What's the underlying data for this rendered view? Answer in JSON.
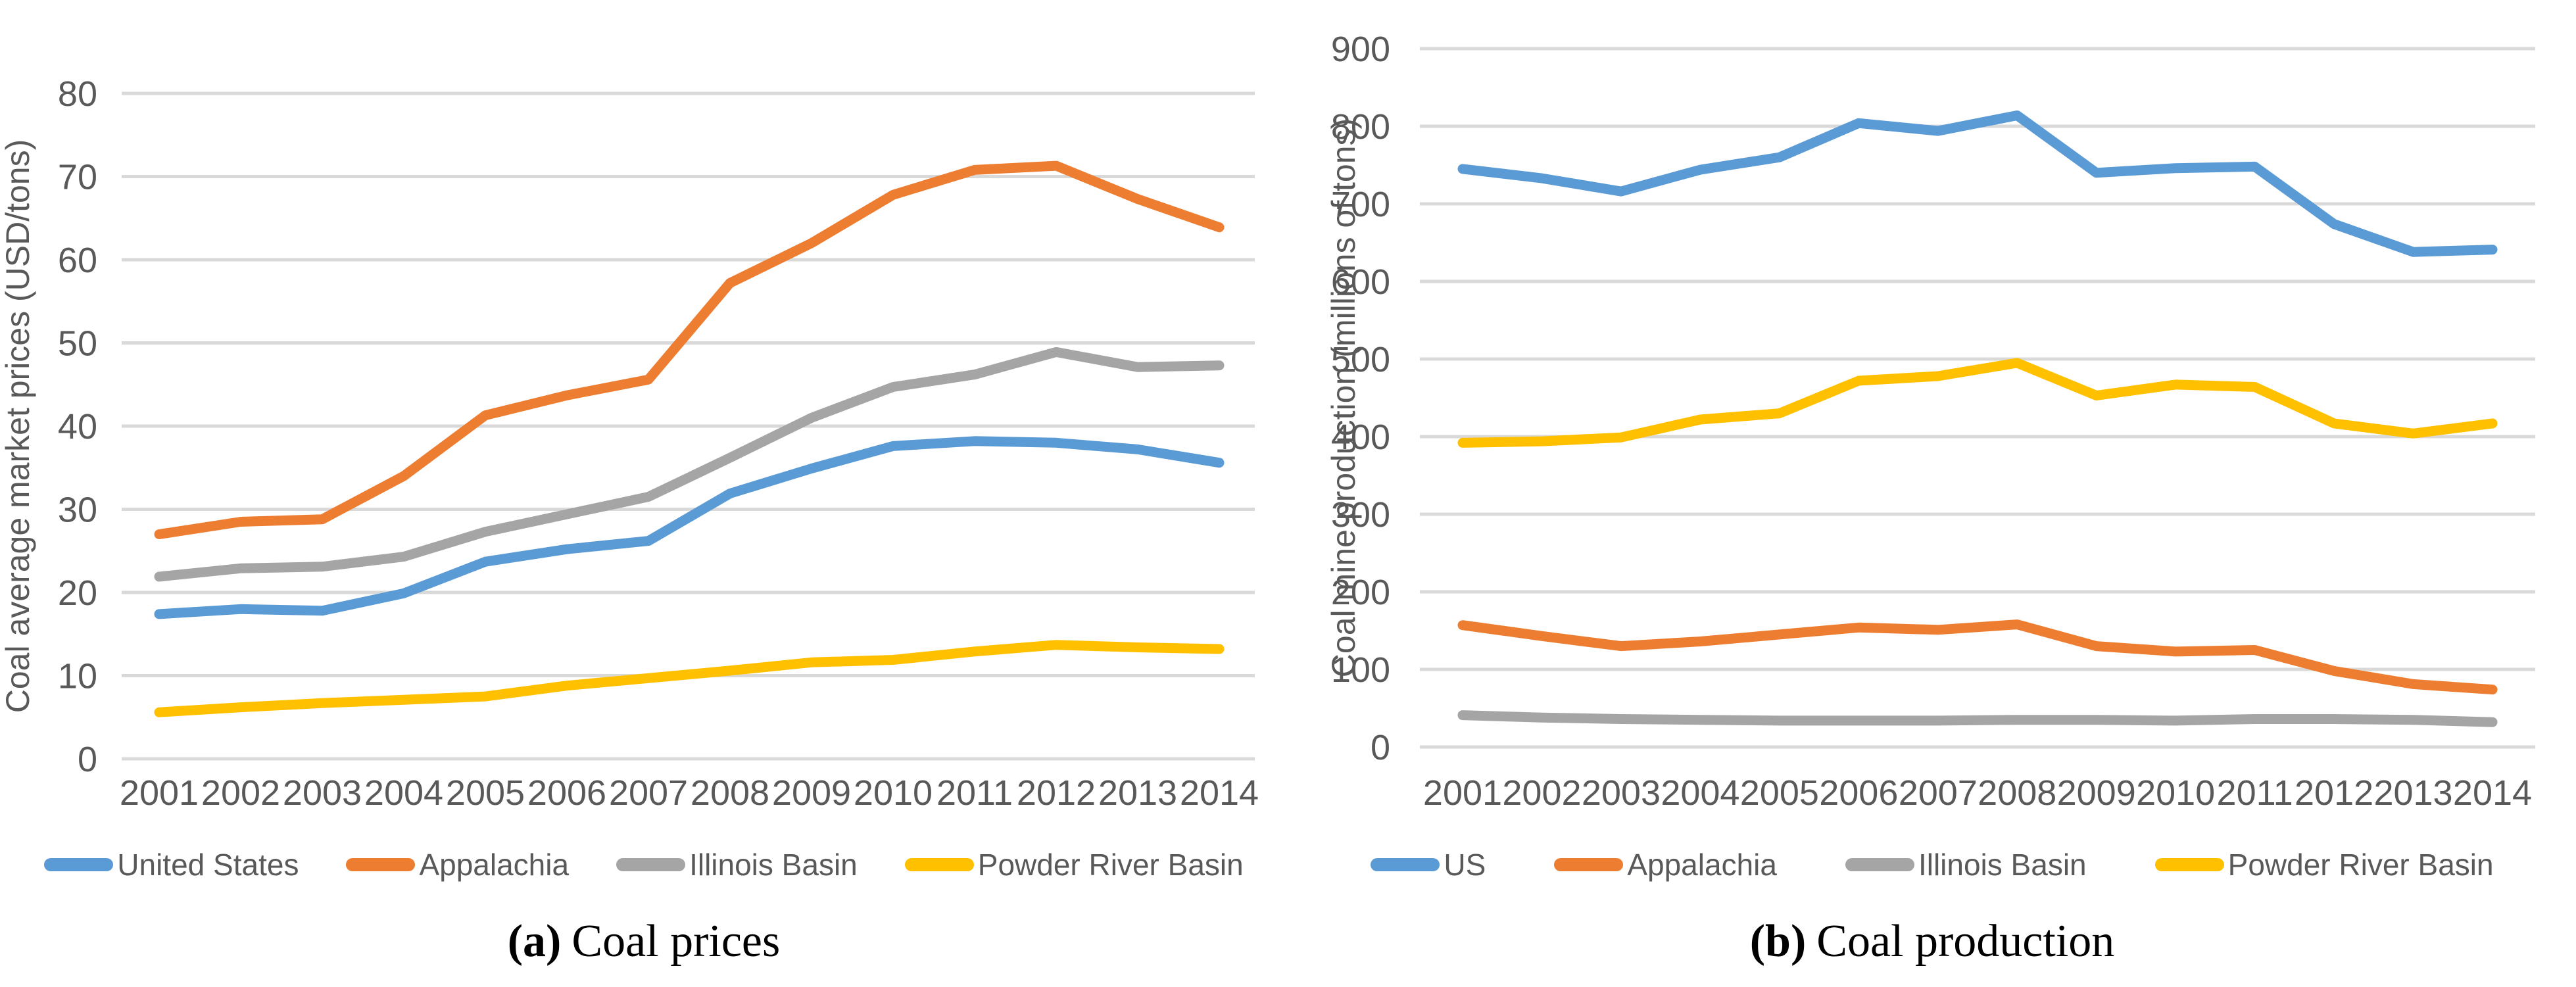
{
  "styles": {
    "background": "#FFFFFF",
    "text_color": "#595959",
    "gridline_color": "#D9D9D9",
    "caption_color": "#000000",
    "series_blue": "#5B9BD5",
    "series_orange": "#ED7D31",
    "series_gray": "#A5A5A5",
    "series_yellow": "#FFC000"
  },
  "chart_data": [
    {
      "id": "a",
      "type": "line",
      "caption_label": "(a)",
      "caption_text": "Coal prices",
      "y_axis_title": "Coal average market prices (USD/tons)",
      "xlabel": "",
      "ylabel": "Coal average market prices (USD/tons)",
      "ylim": [
        0,
        80
      ],
      "ytick_step": 10,
      "grid": true,
      "legend_position": "bottom",
      "categories": [
        "2001",
        "2002",
        "2003",
        "2004",
        "2005",
        "2006",
        "2007",
        "2008",
        "2009",
        "2010",
        "2011",
        "2012",
        "2013",
        "2014"
      ],
      "series": [
        {
          "name": "United States",
          "color": "#5B9BD5",
          "values": [
            17.4,
            18.0,
            17.8,
            19.9,
            23.7,
            25.2,
            26.2,
            31.9,
            34.9,
            37.6,
            38.2,
            38.0,
            37.2,
            35.6
          ]
        },
        {
          "name": "Appalachia",
          "color": "#ED7D31",
          "values": [
            27.0,
            28.5,
            28.8,
            34.0,
            41.3,
            43.7,
            45.6,
            57.2,
            62.0,
            67.8,
            70.8,
            71.3,
            67.3,
            63.9
          ]
        },
        {
          "name": "Illinois Basin",
          "color": "#A5A5A5",
          "values": [
            21.9,
            22.9,
            23.1,
            24.3,
            27.3,
            29.4,
            31.5,
            36.2,
            41.0,
            44.7,
            46.2,
            48.9,
            47.1,
            47.3
          ]
        },
        {
          "name": "Powder River Basin",
          "color": "#FFC000",
          "values": [
            5.6,
            6.2,
            6.7,
            7.1,
            7.5,
            8.8,
            9.7,
            10.6,
            11.6,
            11.9,
            12.9,
            13.7,
            13.4,
            13.2
          ]
        }
      ]
    },
    {
      "id": "b",
      "type": "line",
      "caption_label": "(b)",
      "caption_text": "Coal production",
      "y_axis_title": "Coal mine production (millions of tons)",
      "xlabel": "",
      "ylabel": "Coal mine production (millions of tons)",
      "ylim": [
        0,
        900
      ],
      "ytick_step": 100,
      "grid": true,
      "legend_position": "bottom",
      "categories": [
        "2001",
        "2002",
        "2003",
        "2004",
        "2005",
        "2006",
        "2007",
        "2008",
        "2009",
        "2010",
        "2011",
        "2012",
        "2013",
        "2014"
      ],
      "series": [
        {
          "name": "US",
          "color": "#5B9BD5",
          "values": [
            745,
            733,
            716,
            744,
            760,
            804,
            794,
            814,
            740,
            746,
            748,
            674,
            638,
            641
          ]
        },
        {
          "name": "Appalachia",
          "color": "#ED7D31",
          "values": [
            157,
            143,
            130,
            136,
            145,
            154,
            151,
            158,
            130,
            123,
            125,
            98,
            81,
            74
          ]
        },
        {
          "name": "Illinois Basin",
          "color": "#A5A5A5",
          "values": [
            41,
            38,
            36,
            35,
            34,
            34,
            34,
            35,
            35,
            34,
            36,
            36,
            35,
            32
          ]
        },
        {
          "name": "Powder River Basin",
          "color": "#FFC000",
          "values": [
            392,
            394,
            399,
            422,
            430,
            472,
            478,
            495,
            453,
            467,
            464,
            417,
            404,
            417
          ]
        }
      ]
    }
  ]
}
